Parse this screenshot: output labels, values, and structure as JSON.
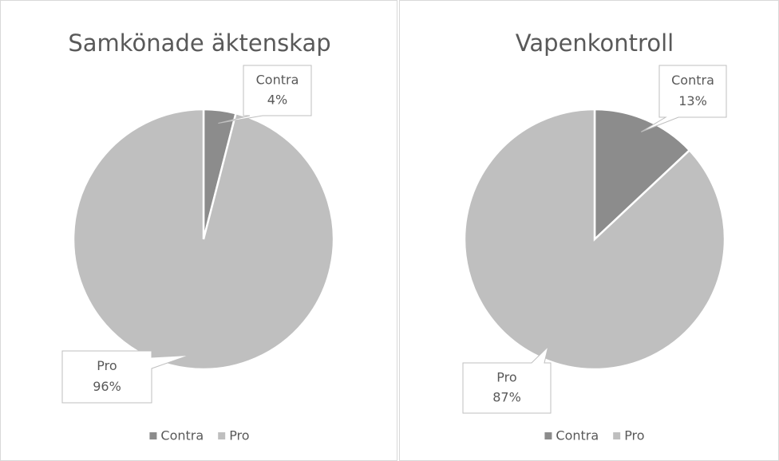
{
  "chart_data": [
    {
      "type": "pie",
      "title": "Samkönade äktenskap",
      "categories": [
        "Contra",
        "Pro"
      ],
      "values": [
        4,
        96
      ],
      "value_labels": [
        "4%",
        "96%"
      ],
      "colors": [
        "#8c8c8c",
        "#bfbfbf"
      ],
      "legend": "bottom"
    },
    {
      "type": "pie",
      "title": "Vapenkontroll",
      "categories": [
        "Contra",
        "Pro"
      ],
      "values": [
        13,
        87
      ],
      "value_labels": [
        "13%",
        "87%"
      ],
      "colors": [
        "#8c8c8c",
        "#bfbfbf"
      ],
      "legend": "bottom"
    }
  ]
}
